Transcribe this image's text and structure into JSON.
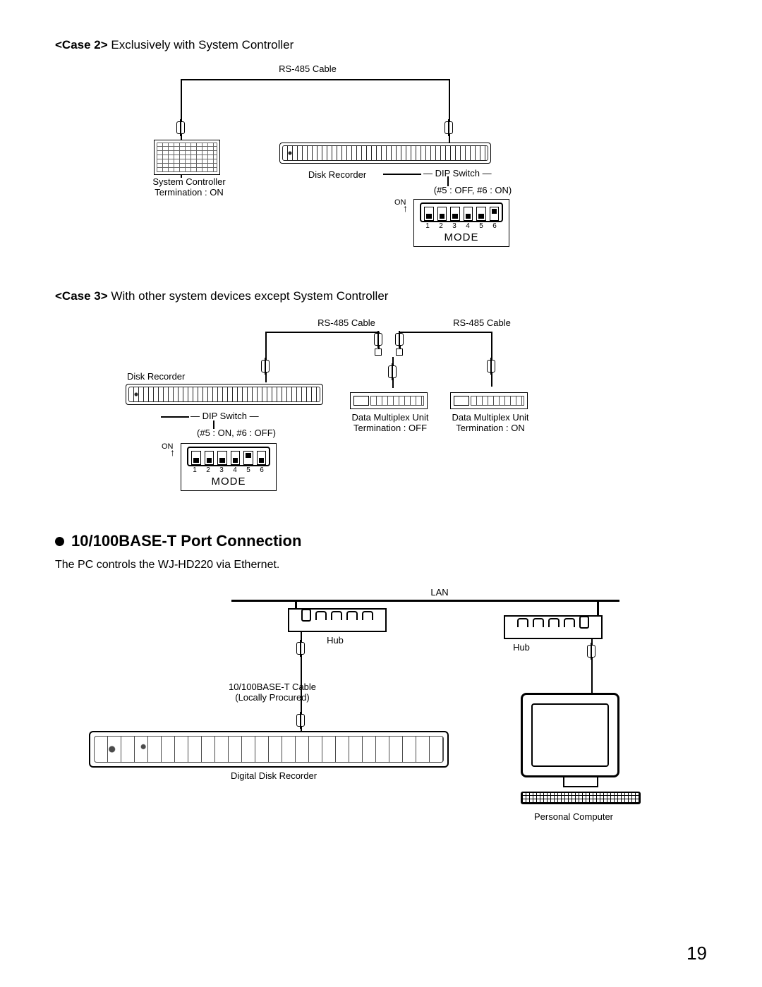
{
  "case2": {
    "title_bold": "<Case 2>",
    "title_rest": " Exclusively with System Controller",
    "rs485": "RS-485 Cable",
    "sys_ctrl": "System Controller",
    "sys_term": "Termination : ON",
    "disk_rec": "Disk Recorder",
    "dip_lbl": "DIP Switch",
    "dip_setting": "(#5 : OFF, #6 : ON)",
    "on": "ON",
    "mode": "MODE",
    "dip_states": [
      "dn",
      "dn",
      "dn",
      "dn",
      "dn",
      "up"
    ],
    "dip_nums": [
      "1",
      "2",
      "3",
      "4",
      "5",
      "6"
    ]
  },
  "case3": {
    "title_bold": "<Case 3>",
    "title_rest": " With other system devices except System Controller",
    "rs485_a": "RS-485 Cable",
    "rs485_b": "RS-485 Cable",
    "disk_rec": "Disk Recorder",
    "dip_lbl": "DIP Switch",
    "dip_setting": "(#5 : ON, #6 : OFF)",
    "on": "ON",
    "mode": "MODE",
    "mux1": "Data Multiplex Unit",
    "mux1_term": "Termination : OFF",
    "mux2": "Data Multiplex Unit",
    "mux2_term": "Termination : ON",
    "dip_states": [
      "dn",
      "dn",
      "dn",
      "dn",
      "up",
      "dn"
    ],
    "dip_nums": [
      "1",
      "2",
      "3",
      "4",
      "5",
      "6"
    ]
  },
  "sec": {
    "heading": "10/100BASE-T Port Connection",
    "para": "The PC controls the WJ-HD220 via Ethernet.",
    "lan": "LAN",
    "hub": "Hub",
    "cable": "10/100BASE-T Cable",
    "cable2": "(Locally Procured)",
    "ddr": "Digital Disk Recorder",
    "pc": "Personal Computer"
  },
  "page": "19"
}
